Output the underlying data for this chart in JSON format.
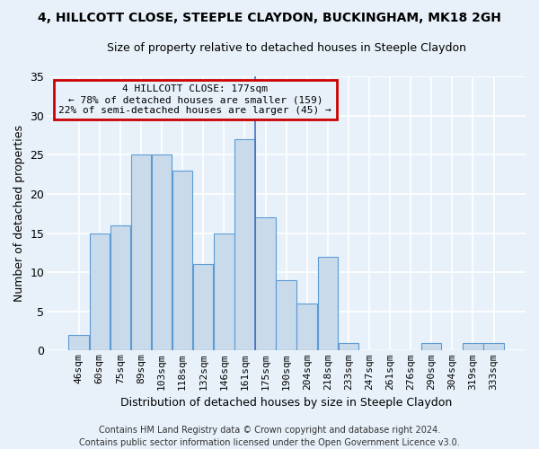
{
  "title": "4, HILLCOTT CLOSE, STEEPLE CLAYDON, BUCKINGHAM, MK18 2GH",
  "subtitle": "Size of property relative to detached houses in Steeple Claydon",
  "xlabel": "Distribution of detached houses by size in Steeple Claydon",
  "ylabel": "Number of detached properties",
  "categories": [
    "46sqm",
    "60sqm",
    "75sqm",
    "89sqm",
    "103sqm",
    "118sqm",
    "132sqm",
    "146sqm",
    "161sqm",
    "175sqm",
    "190sqm",
    "204sqm",
    "218sqm",
    "233sqm",
    "247sqm",
    "261sqm",
    "276sqm",
    "290sqm",
    "304sqm",
    "319sqm",
    "333sqm"
  ],
  "values": [
    2,
    15,
    16,
    25,
    25,
    23,
    11,
    15,
    27,
    17,
    9,
    6,
    12,
    1,
    0,
    0,
    0,
    1,
    0,
    1,
    1
  ],
  "bar_color": "#c9daea",
  "bar_edge_color": "#5b9bd5",
  "annotation_title": "4 HILLCOTT CLOSE: 177sqm",
  "annotation_line1": "← 78% of detached houses are smaller (159)",
  "annotation_line2": "22% of semi-detached houses are larger (45) →",
  "annotation_box_color": "#cc0000",
  "vline_pos": 8.5,
  "ylim": [
    0,
    35
  ],
  "yticks": [
    0,
    5,
    10,
    15,
    20,
    25,
    30,
    35
  ],
  "footer": "Contains HM Land Registry data © Crown copyright and database right 2024.\nContains public sector information licensed under the Open Government Licence v3.0.",
  "bg_color": "#e8f1fa",
  "grid_color": "#ffffff",
  "title_fontsize": 10,
  "subtitle_fontsize": 9,
  "xlabel_fontsize": 9,
  "ylabel_fontsize": 9,
  "tick_fontsize": 8,
  "annot_fontsize": 8,
  "footer_fontsize": 7
}
